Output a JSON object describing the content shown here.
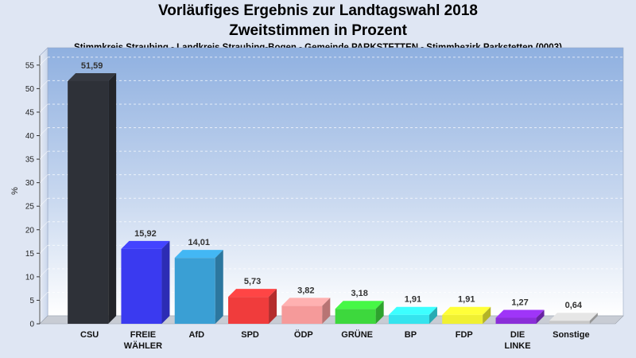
{
  "chart_data": {
    "type": "bar",
    "title": "Vorläufiges Ergebnis zur Landtagswahl 2018",
    "subtitle": "Zweitstimmen in Prozent",
    "caption": "Stimmkreis Straubing - Landkreis Straubing-Bogen - Gemeinde PARKSTETTEN - Stimmbezirk Parkstetten (0003)",
    "ylabel": "%",
    "ylim": [
      0,
      57
    ],
    "yticks": [
      0,
      5,
      10,
      15,
      20,
      25,
      30,
      35,
      40,
      45,
      50,
      55
    ],
    "grid": true,
    "categories": [
      "CSU",
      "FREIE WÄHLER",
      "AfD",
      "SPD",
      "ÖDP",
      "GRÜNE",
      "BP",
      "FDP",
      "DIE LINKE",
      "Sonstige"
    ],
    "value_labels": [
      "51,59",
      "15,92",
      "14,01",
      "5,73",
      "3,82",
      "3,18",
      "1,91",
      "1,91",
      "1,27",
      "0,64"
    ],
    "values": [
      51.59,
      15.92,
      14.01,
      5.73,
      3.82,
      3.18,
      1.91,
      1.91,
      1.27,
      0.64
    ],
    "colors": [
      "#2e3138",
      "#3a3af0",
      "#3a9fd4",
      "#f03c3c",
      "#f59a9a",
      "#3dd83d",
      "#35e4ee",
      "#f0f032",
      "#8a2ed8",
      "#c8c8c8"
    ]
  }
}
